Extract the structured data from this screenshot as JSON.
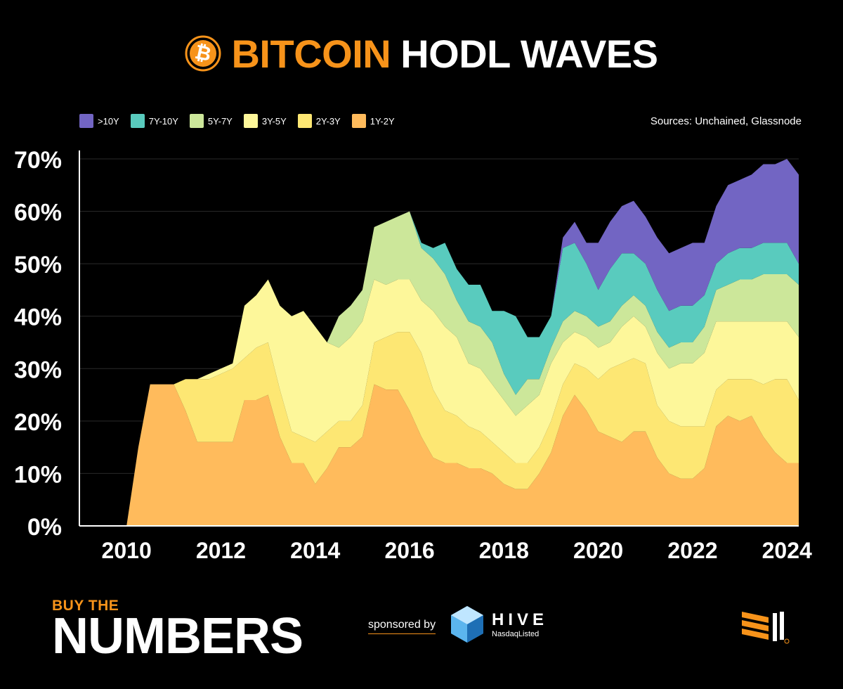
{
  "title": {
    "accent": "BITCOIN",
    "main": "HODL WAVES",
    "icon": "bitcoin-icon"
  },
  "source": "Sources: Unchained, Glassnode",
  "colors": {
    "accent": "#f7931a",
    "background": "#000000"
  },
  "footer": {
    "brand_top": "BUY THE",
    "brand_main": "NUMBERS",
    "sponsored_by": "sponsored by",
    "hive_name": "HIVE",
    "hive_sub": "NasdaqListed"
  },
  "chart_data": {
    "type": "area",
    "stacked": true,
    "xlim": [
      2009,
      2024.25
    ],
    "ylim": [
      0,
      70
    ],
    "y_unit": "%",
    "grid": true,
    "legend_position": "top-left",
    "x_ticks": [
      "2010",
      "2012",
      "2014",
      "2016",
      "2018",
      "2020",
      "2022",
      "2024"
    ],
    "y_ticks": [
      "0%",
      "10%",
      "20%",
      "30%",
      "40%",
      "50%",
      "60%",
      "70%"
    ],
    "x": [
      2010.0,
      2010.25,
      2010.5,
      2010.75,
      2011.0,
      2011.25,
      2011.5,
      2011.75,
      2012.0,
      2012.25,
      2012.5,
      2012.75,
      2013.0,
      2013.25,
      2013.5,
      2013.75,
      2014.0,
      2014.25,
      2014.5,
      2014.75,
      2015.0,
      2015.25,
      2015.5,
      2015.75,
      2016.0,
      2016.25,
      2016.5,
      2016.75,
      2017.0,
      2017.25,
      2017.5,
      2017.75,
      2018.0,
      2018.25,
      2018.5,
      2018.75,
      2019.0,
      2019.25,
      2019.5,
      2019.75,
      2020.0,
      2020.25,
      2020.5,
      2020.75,
      2021.0,
      2021.25,
      2021.5,
      2021.75,
      2022.0,
      2022.25,
      2022.5,
      2022.75,
      2023.0,
      2023.25,
      2023.5,
      2023.75,
      2024.0,
      2024.25
    ],
    "series": [
      {
        "name": "1Y-2Y",
        "color": "#ffbb5c",
        "values": [
          0,
          15,
          27,
          27,
          27,
          22,
          16,
          16,
          16,
          16,
          24,
          24,
          25,
          17,
          12,
          12,
          8,
          11,
          15,
          15,
          17,
          27,
          26,
          26,
          22,
          17,
          13,
          12,
          12,
          11,
          11,
          10,
          8,
          7,
          7,
          10,
          14,
          21,
          25,
          22,
          18,
          17,
          16,
          18,
          18,
          13,
          10,
          9,
          9,
          11,
          19,
          21,
          20,
          21,
          17,
          14,
          12,
          12
        ]
      },
      {
        "name": "2Y-3Y",
        "color": "#fde773",
        "values": [
          0,
          0,
          0,
          0,
          0,
          6,
          12,
          12,
          13,
          14,
          8,
          10,
          10,
          9,
          6,
          5,
          8,
          7,
          5,
          5,
          6,
          8,
          10,
          11,
          15,
          16,
          13,
          10,
          9,
          8,
          7,
          6,
          6,
          5,
          5,
          5,
          6,
          6,
          6,
          8,
          10,
          13,
          15,
          14,
          13,
          10,
          10,
          10,
          10,
          8,
          7,
          7,
          8,
          7,
          10,
          14,
          16,
          12
        ]
      },
      {
        "name": "3Y-5Y",
        "color": "#fdf79a",
        "values": [
          0,
          0,
          0,
          0,
          0,
          0,
          0,
          1,
          1,
          1,
          10,
          10,
          12,
          16,
          22,
          24,
          22,
          17,
          14,
          16,
          16,
          12,
          10,
          10,
          10,
          10,
          15,
          16,
          15,
          12,
          12,
          11,
          10,
          9,
          11,
          10,
          11,
          8,
          6,
          6,
          6,
          5,
          7,
          8,
          7,
          10,
          10,
          12,
          12,
          14,
          13,
          11,
          11,
          11,
          12,
          11,
          11,
          12
        ]
      },
      {
        "name": "5Y-7Y",
        "color": "#cce79a",
        "values": [
          0,
          0,
          0,
          0,
          0,
          0,
          0,
          0,
          0,
          0,
          0,
          0,
          0,
          0,
          0,
          0,
          0,
          0,
          6,
          6,
          6,
          10,
          12,
          12,
          13,
          10,
          10,
          10,
          7,
          8,
          8,
          8,
          5,
          4,
          5,
          3,
          3,
          4,
          4,
          4,
          4,
          4,
          4,
          4,
          4,
          4,
          4,
          4,
          4,
          5,
          6,
          7,
          8,
          8,
          9,
          9,
          9,
          10
        ]
      },
      {
        "name": "7Y-10Y",
        "color": "#59cbbe",
        "values": [
          0,
          0,
          0,
          0,
          0,
          0,
          0,
          0,
          0,
          0,
          0,
          0,
          0,
          0,
          0,
          0,
          0,
          0,
          0,
          0,
          0,
          0,
          0,
          0,
          0,
          1,
          2,
          6,
          6,
          7,
          8,
          6,
          12,
          15,
          8,
          8,
          6,
          14,
          13,
          10,
          7,
          10,
          10,
          8,
          8,
          8,
          7,
          7,
          7,
          6,
          5,
          6,
          6,
          6,
          6,
          6,
          6,
          4
        ]
      },
      {
        "name": ">10Y",
        "color": "#7265c3",
        "values": [
          0,
          0,
          0,
          0,
          0,
          0,
          0,
          0,
          0,
          0,
          0,
          0,
          0,
          0,
          0,
          0,
          0,
          0,
          0,
          0,
          0,
          0,
          0,
          0,
          0,
          0,
          0,
          0,
          0,
          0,
          0,
          0,
          0,
          0,
          0,
          0,
          0,
          2,
          4,
          4,
          9,
          9,
          9,
          10,
          9,
          10,
          11,
          11,
          12,
          10,
          11,
          13,
          13,
          14,
          15,
          15,
          16,
          17
        ]
      }
    ]
  }
}
